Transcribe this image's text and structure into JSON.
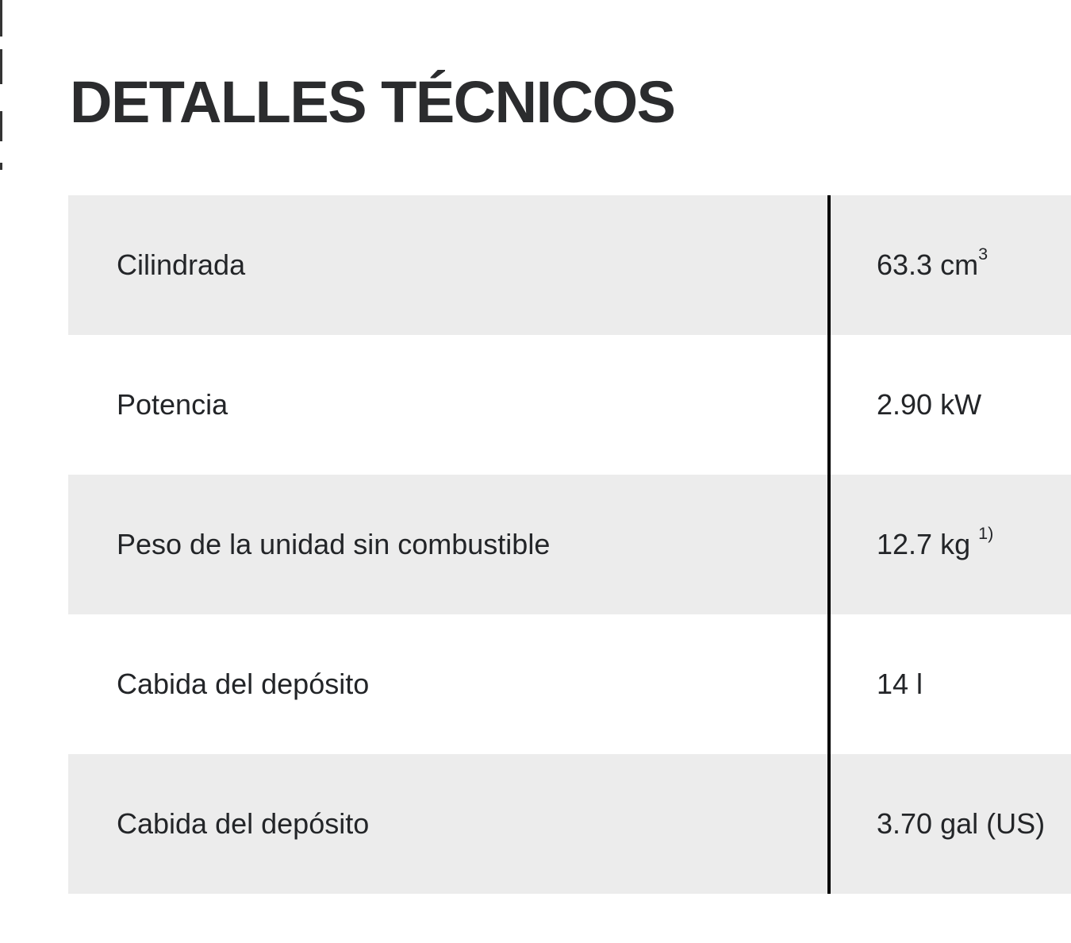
{
  "title": "DETALLES TÉCNICOS",
  "table": {
    "rows": [
      {
        "label": "Cilindrada",
        "value": "63.3 cm",
        "sup": "3"
      },
      {
        "label": "Potencia",
        "value": "2.90 kW"
      },
      {
        "label": "Peso de la unidad sin combustible",
        "value": "12.7 kg ",
        "sup": "1)"
      },
      {
        "label": "Cabida del depósito",
        "value": "14 l"
      },
      {
        "label": "Cabida del depósito",
        "value": "3.70 gal (US)"
      }
    ]
  },
  "colors": {
    "row_stripe": "#ececec",
    "text": "#232528",
    "title": "#2b2c2e",
    "divider": "#000000"
  }
}
